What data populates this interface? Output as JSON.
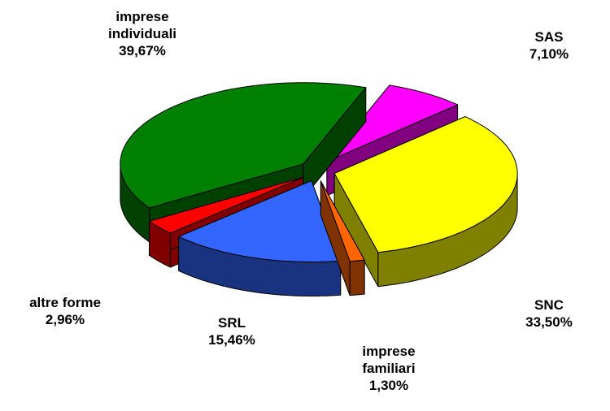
{
  "chart_data": {
    "type": "pie3d",
    "categories": [
      "SAS",
      "SNC",
      "imprese familiari",
      "SRL",
      "altre forme",
      "imprese individuali"
    ],
    "values": [
      7.1,
      33.5,
      1.3,
      15.46,
      2.96,
      39.67
    ],
    "value_labels": [
      "7,10%",
      "33,50%",
      "1,30%",
      "15,46%",
      "2,96%",
      "39,67%"
    ],
    "colors": [
      "#ff00ff",
      "#ffff00",
      "#ff6600",
      "#3366ff",
      "#ff0000",
      "#008000"
    ],
    "side_colors": [
      "#800080",
      "#808000",
      "#803300",
      "#1a3380",
      "#800000",
      "#004000"
    ]
  }
}
